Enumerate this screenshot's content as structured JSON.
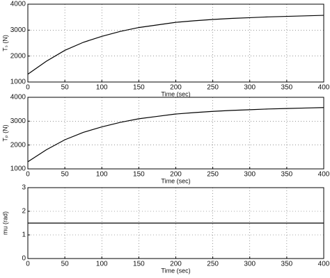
{
  "chart_data": [
    {
      "type": "line",
      "xlabel": "Time (sec)",
      "ylabel": "Tₛ (N)",
      "color": "#000000",
      "grid": true,
      "x": [
        0,
        25,
        50,
        75,
        100,
        125,
        150,
        175,
        200,
        225,
        250,
        275,
        300,
        325,
        350,
        375,
        400
      ],
      "values": [
        1300,
        1800,
        2220,
        2530,
        2760,
        2950,
        3100,
        3200,
        3300,
        3360,
        3410,
        3450,
        3480,
        3510,
        3530,
        3550,
        3570
      ],
      "xlim": [
        0,
        400
      ],
      "xticks": [
        0,
        50,
        100,
        150,
        200,
        250,
        300,
        350,
        400
      ],
      "ylim": [
        1000,
        4000
      ],
      "yticks": [
        1000,
        2000,
        3000,
        4000
      ]
    },
    {
      "type": "line",
      "xlabel": "Time (sec)",
      "ylabel": "Tₚ (N)",
      "color": "#000000",
      "grid": true,
      "x": [
        0,
        25,
        50,
        75,
        100,
        125,
        150,
        175,
        200,
        225,
        250,
        275,
        300,
        325,
        350,
        375,
        400
      ],
      "values": [
        1300,
        1800,
        2220,
        2530,
        2760,
        2950,
        3100,
        3200,
        3300,
        3360,
        3410,
        3450,
        3480,
        3510,
        3530,
        3550,
        3570
      ],
      "xlim": [
        0,
        400
      ],
      "xticks": [
        0,
        50,
        100,
        150,
        200,
        250,
        300,
        350,
        400
      ],
      "ylim": [
        1000,
        4000
      ],
      "yticks": [
        1000,
        2000,
        3000,
        4000
      ]
    },
    {
      "type": "line",
      "xlabel": "Time (sec)",
      "ylabel": "mu (rad)",
      "color": "#000000",
      "grid": true,
      "x": [
        0,
        400
      ],
      "values": [
        1.5,
        1.5
      ],
      "xlim": [
        0,
        400
      ],
      "xticks": [
        0,
        50,
        100,
        150,
        200,
        250,
        300,
        350,
        400
      ],
      "ylim": [
        0,
        3
      ],
      "yticks": [
        0,
        1,
        2,
        3
      ]
    }
  ]
}
